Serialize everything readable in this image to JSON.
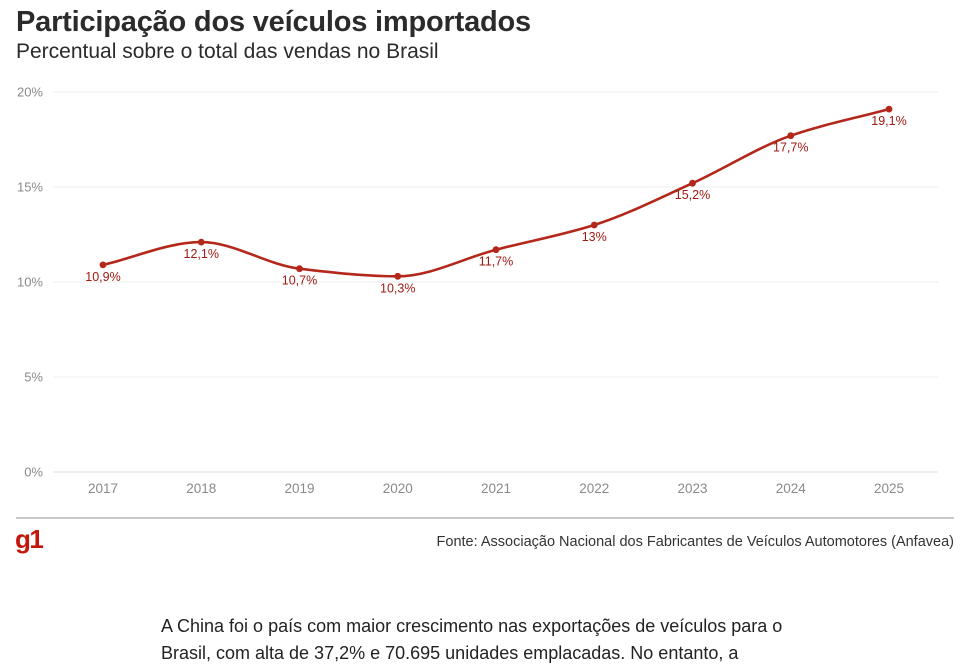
{
  "header": {
    "title": "Participação dos veículos importados",
    "subtitle": "Percentual sobre o total das vendas no Brasil"
  },
  "chart_data": {
    "type": "line",
    "title": "Participação dos veículos importados",
    "subtitle": "Percentual sobre o total das vendas no Brasil",
    "xlabel": "",
    "ylabel": "",
    "x": [
      "2017",
      "2018",
      "2019",
      "2020",
      "2021",
      "2022",
      "2023",
      "2024",
      "2025"
    ],
    "series": [
      {
        "values": [
          10.9,
          12.1,
          10.7,
          10.3,
          11.7,
          13,
          15.2,
          17.7,
          19.1
        ]
      }
    ],
    "data_labels": [
      "10,9%",
      "12,1%",
      "10,7%",
      "10,3%",
      "11,7%",
      "13%",
      "15,2%",
      "17,7%",
      "19,1%"
    ],
    "ylim": [
      0,
      20
    ],
    "yticks": [
      0,
      5,
      10,
      15,
      20
    ],
    "ytick_labels": [
      "0%",
      "5%",
      "10%",
      "15%",
      "20%"
    ],
    "grid": true,
    "line_color": "#b4271b",
    "grid_color": "#eeeeee",
    "label_color": "#a01a12"
  },
  "footer": {
    "logo": "g1",
    "source": "Fonte: Associação Nacional dos Fabricantes de Veículos Automotores (Anfavea)"
  },
  "article": {
    "text": "A China foi o país com maior crescimento nas exportações de veículos para o Brasil, com alta de 37,2% e 70.695 unidades emplacadas. No entanto, a"
  }
}
